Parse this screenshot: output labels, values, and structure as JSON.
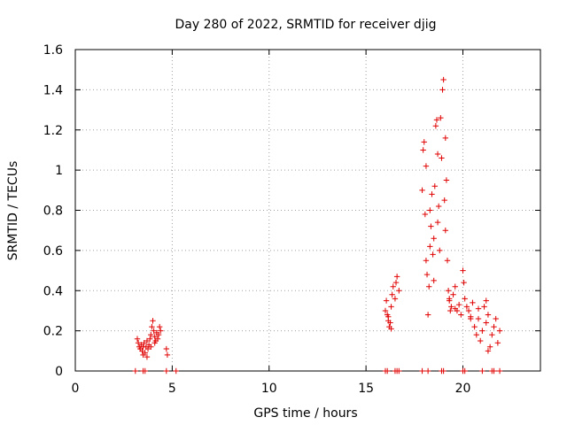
{
  "chart_data": {
    "type": "scatter",
    "title": "Day 280 of 2022, SRMTID for receiver djig",
    "xlabel": "GPS time / hours",
    "ylabel": "SRMTID / TECUs",
    "xlim": [
      0,
      24
    ],
    "ylim": [
      0,
      1.6
    ],
    "x_ticks": [
      0,
      5,
      10,
      15,
      20
    ],
    "x_tick_labels": [
      "0",
      "5",
      "10",
      "15",
      "20"
    ],
    "y_ticks": [
      0,
      0.2,
      0.4,
      0.6,
      0.8,
      1.0,
      1.2,
      1.4,
      1.6
    ],
    "y_tick_labels": [
      "0",
      "0.2",
      "0.4",
      "0.6",
      "0.8",
      "1",
      "1.2",
      "1.4",
      "1.6"
    ],
    "grid": true,
    "marker": "plus",
    "color": "#e00000",
    "series": [
      {
        "name": "SRMTID",
        "points": [
          [
            3.1,
            0.0
          ],
          [
            3.5,
            0.0
          ],
          [
            3.6,
            0.0
          ],
          [
            4.7,
            0.0
          ],
          [
            5.2,
            0.0
          ],
          [
            3.2,
            0.16
          ],
          [
            3.25,
            0.14
          ],
          [
            3.3,
            0.12
          ],
          [
            3.35,
            0.11
          ],
          [
            3.4,
            0.13
          ],
          [
            3.45,
            0.1
          ],
          [
            3.5,
            0.12
          ],
          [
            3.55,
            0.14
          ],
          [
            3.6,
            0.09
          ],
          [
            3.65,
            0.12
          ],
          [
            3.7,
            0.15
          ],
          [
            3.75,
            0.11
          ],
          [
            3.8,
            0.13
          ],
          [
            3.85,
            0.16
          ],
          [
            3.9,
            0.18
          ],
          [
            3.95,
            0.22
          ],
          [
            4.0,
            0.25
          ],
          [
            4.05,
            0.2
          ],
          [
            4.1,
            0.17
          ],
          [
            4.15,
            0.15
          ],
          [
            4.2,
            0.19
          ],
          [
            4.25,
            0.16
          ],
          [
            4.3,
            0.18
          ],
          [
            4.35,
            0.22
          ],
          [
            4.4,
            0.2
          ],
          [
            3.5,
            0.08
          ],
          [
            3.7,
            0.07
          ],
          [
            3.9,
            0.12
          ],
          [
            4.1,
            0.14
          ],
          [
            4.7,
            0.11
          ],
          [
            4.75,
            0.08
          ],
          [
            16.0,
            0.0
          ],
          [
            16.1,
            0.0
          ],
          [
            16.5,
            0.0
          ],
          [
            16.6,
            0.0
          ],
          [
            16.7,
            0.0
          ],
          [
            16.0,
            0.3
          ],
          [
            16.05,
            0.35
          ],
          [
            16.1,
            0.28
          ],
          [
            16.15,
            0.25
          ],
          [
            16.2,
            0.22
          ],
          [
            16.25,
            0.24
          ],
          [
            16.3,
            0.32
          ],
          [
            16.35,
            0.38
          ],
          [
            16.4,
            0.42
          ],
          [
            16.5,
            0.36
          ],
          [
            16.55,
            0.44
          ],
          [
            16.6,
            0.47
          ],
          [
            16.7,
            0.4
          ],
          [
            16.15,
            0.27
          ],
          [
            16.3,
            0.21
          ],
          [
            17.9,
            0.0
          ],
          [
            18.2,
            0.0
          ],
          [
            18.9,
            0.0
          ],
          [
            19.0,
            0.0
          ],
          [
            20.0,
            0.0
          ],
          [
            20.1,
            0.0
          ],
          [
            21.0,
            0.0
          ],
          [
            21.5,
            0.0
          ],
          [
            21.6,
            0.0
          ],
          [
            21.9,
            0.0
          ],
          [
            17.9,
            0.9
          ],
          [
            17.95,
            1.1
          ],
          [
            18.0,
            1.14
          ],
          [
            18.05,
            0.78
          ],
          [
            18.1,
            0.55
          ],
          [
            18.15,
            0.48
          ],
          [
            18.2,
            0.28
          ],
          [
            18.25,
            0.42
          ],
          [
            18.3,
            0.62
          ],
          [
            18.35,
            0.72
          ],
          [
            18.4,
            0.88
          ],
          [
            18.45,
            0.58
          ],
          [
            18.5,
            0.66
          ],
          [
            18.55,
            0.92
          ],
          [
            18.6,
            1.22
          ],
          [
            18.65,
            1.25
          ],
          [
            18.7,
            1.08
          ],
          [
            18.75,
            0.82
          ],
          [
            18.8,
            0.6
          ],
          [
            18.85,
            1.26
          ],
          [
            18.9,
            1.06
          ],
          [
            18.95,
            1.4
          ],
          [
            19.0,
            1.45
          ],
          [
            19.05,
            0.85
          ],
          [
            19.1,
            0.7
          ],
          [
            19.15,
            0.95
          ],
          [
            19.2,
            0.55
          ],
          [
            19.25,
            0.4
          ],
          [
            19.3,
            0.35
          ],
          [
            19.35,
            0.3
          ],
          [
            19.4,
            0.32
          ],
          [
            19.5,
            0.38
          ],
          [
            19.6,
            0.31
          ],
          [
            19.7,
            0.3
          ],
          [
            19.8,
            0.33
          ],
          [
            19.9,
            0.28
          ],
          [
            20.0,
            0.5
          ],
          [
            20.05,
            0.44
          ],
          [
            20.1,
            0.36
          ],
          [
            20.2,
            0.32
          ],
          [
            20.3,
            0.3
          ],
          [
            20.4,
            0.27
          ],
          [
            20.5,
            0.34
          ],
          [
            20.6,
            0.22
          ],
          [
            20.7,
            0.18
          ],
          [
            20.8,
            0.26
          ],
          [
            20.9,
            0.15
          ],
          [
            21.0,
            0.2
          ],
          [
            21.1,
            0.32
          ],
          [
            21.2,
            0.24
          ],
          [
            21.3,
            0.28
          ],
          [
            21.4,
            0.12
          ],
          [
            21.5,
            0.18
          ],
          [
            21.6,
            0.22
          ],
          [
            21.7,
            0.26
          ],
          [
            21.8,
            0.14
          ],
          [
            21.9,
            0.2
          ],
          [
            18.1,
            1.02
          ],
          [
            18.3,
            0.8
          ],
          [
            18.5,
            0.45
          ],
          [
            18.7,
            0.74
          ],
          [
            19.1,
            1.16
          ],
          [
            19.3,
            0.36
          ],
          [
            19.6,
            0.42
          ],
          [
            20.4,
            0.26
          ],
          [
            20.8,
            0.31
          ],
          [
            21.2,
            0.35
          ],
          [
            21.3,
            0.1
          ]
        ]
      }
    ]
  }
}
